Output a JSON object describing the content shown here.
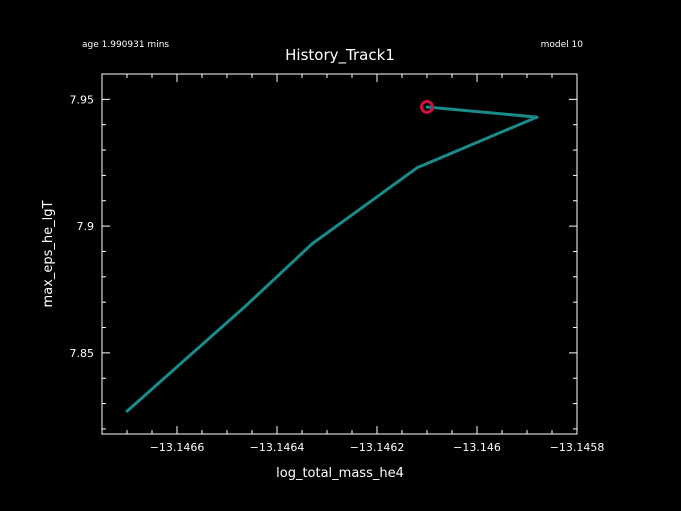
{
  "header": {
    "age_text": "age 1.990931 mins",
    "model_text": "model 10"
  },
  "chart_data": {
    "type": "line",
    "title": "History_Track1",
    "xlabel": "log_total_mass_he4",
    "ylabel": "max_eps_he_lgT",
    "xlim": [
      -13.14675,
      -13.1458
    ],
    "ylim": [
      7.818,
      7.96
    ],
    "xticks": [
      -13.1466,
      -13.1464,
      -13.1462,
      -13.146,
      -13.1458
    ],
    "xtick_labels": [
      "−13.1466",
      "−13.1464",
      "−13.1462",
      "−13.146",
      "−13.1458"
    ],
    "yticks": [
      7.85,
      7.9,
      7.95
    ],
    "ytick_labels": [
      "7.85",
      "7.9",
      "7.95"
    ],
    "series": [
      {
        "color": "#1a8a8a",
        "x": [
          -13.1467,
          -13.14646,
          -13.14633,
          -13.14612,
          -13.14588,
          -13.1461
        ],
        "y": [
          7.827,
          7.869,
          7.893,
          7.923,
          7.943,
          7.947
        ]
      }
    ],
    "marker": {
      "x": -13.1461,
      "y": 7.947,
      "color": "#d01040"
    },
    "grid": false
  }
}
